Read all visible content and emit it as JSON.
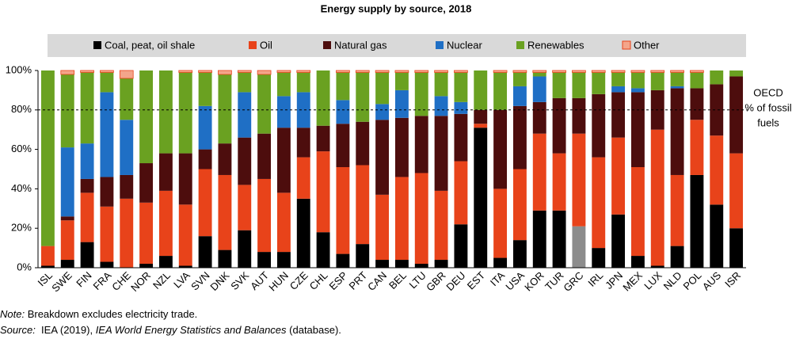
{
  "chart_data": {
    "type": "stacked_bar",
    "title": "Energy supply by source, 2018",
    "categories": [
      "ISL",
      "SWE",
      "FIN",
      "FRA",
      "CHE",
      "NOR",
      "NZL",
      "LVA",
      "SVN",
      "DNK",
      "SVK",
      "AUT",
      "HUN",
      "CZE",
      "CHL",
      "ESP",
      "PRT",
      "CAN",
      "BEL",
      "LTU",
      "GBR",
      "DEU",
      "EST",
      "ITA",
      "USA",
      "KOR",
      "TUR",
      "GRC",
      "IRL",
      "JPN",
      "MEX",
      "LUX",
      "NLD",
      "POL",
      "AUS",
      "ISR"
    ],
    "series": [
      {
        "name": "Coal, peat, oil shale",
        "color": "#000000",
        "values": [
          1,
          4,
          13,
          3,
          0,
          2,
          6,
          1,
          16,
          9,
          19,
          8,
          8,
          35,
          18,
          7,
          12,
          4,
          4,
          2,
          4,
          22,
          71,
          5,
          14,
          29,
          29,
          21,
          10,
          27,
          6,
          1,
          11,
          47,
          32,
          20
        ]
      },
      {
        "name": "Oil",
        "color": "#e8431a",
        "values": [
          10,
          20,
          25,
          28,
          35,
          31,
          33,
          31,
          34,
          38,
          23,
          37,
          30,
          21,
          41,
          44,
          40,
          33,
          42,
          46,
          35,
          32,
          2,
          35,
          36,
          39,
          29,
          47,
          46,
          39,
          45,
          69,
          36,
          28,
          35,
          38
        ]
      },
      {
        "name": "Natural gas",
        "color": "#4d0d0d",
        "values": [
          0,
          2,
          7,
          15,
          12,
          20,
          19,
          26,
          10,
          16,
          24,
          23,
          33,
          15,
          13,
          22,
          22,
          38,
          30,
          29,
          38,
          24,
          7,
          40,
          32,
          16,
          28,
          18,
          32,
          23,
          38,
          20,
          44,
          16,
          26,
          39
        ]
      },
      {
        "name": "Nuclear",
        "color": "#1f6fc5",
        "values": [
          0,
          35,
          18,
          43,
          28,
          0,
          0,
          0,
          22,
          0,
          23,
          0,
          16,
          18,
          0,
          12,
          0,
          8,
          14,
          0,
          10,
          6,
          0,
          0,
          10,
          13,
          0,
          0,
          0,
          3,
          2,
          0,
          1,
          0,
          0,
          0
        ]
      },
      {
        "name": "Renewables",
        "color": "#6aa121",
        "values": [
          89,
          37,
          36,
          10,
          21,
          47,
          42,
          41,
          17,
          35,
          10,
          30,
          12,
          10,
          28,
          14,
          25,
          16,
          9,
          22,
          12,
          15,
          20,
          19,
          7,
          2,
          13,
          13,
          11,
          7,
          8,
          9,
          7,
          8,
          7,
          3
        ]
      },
      {
        "name": "Other",
        "color": "#f4a58a",
        "values": [
          0,
          2,
          1,
          1,
          4,
          0,
          0,
          1,
          1,
          2,
          1,
          2,
          1,
          1,
          0,
          1,
          1,
          1,
          1,
          1,
          1,
          1,
          0,
          1,
          1,
          1,
          1,
          1,
          1,
          1,
          1,
          1,
          1,
          1,
          0,
          0
        ]
      }
    ],
    "highlight": {
      "series": 0,
      "index": 27,
      "color": "#8c8c8c"
    },
    "ylim": [
      0,
      100
    ],
    "yticks": [
      {
        "value": 0,
        "label": "0%"
      },
      {
        "value": 20,
        "label": "20%"
      },
      {
        "value": 40,
        "label": "40%"
      },
      {
        "value": 60,
        "label": "60%"
      },
      {
        "value": 80,
        "label": "80%"
      },
      {
        "value": 100,
        "label": "100%"
      }
    ],
    "reference_line": {
      "value": 80,
      "label": [
        "OECD",
        "% of fossil",
        "fuels"
      ]
    },
    "legend": "top"
  },
  "notes": [
    [
      {
        "text": "Note:",
        "italic": true
      },
      {
        "text": " Breakdown excludes electricity trade.",
        "italic": false
      }
    ],
    [
      {
        "text": "Source:",
        "italic": true
      },
      {
        "text": "  IEA (2019), ",
        "italic": false
      },
      {
        "text": "IEA World Energy Statistics and Balances",
        "italic": true
      },
      {
        "text": " (database).",
        "italic": false
      }
    ]
  ]
}
